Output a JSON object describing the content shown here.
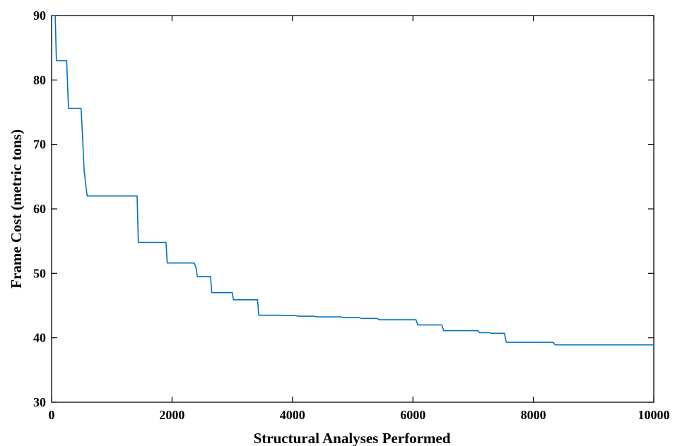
{
  "chart_data": {
    "type": "line",
    "title": "",
    "xlabel": "Structural Analyses Performed",
    "ylabel": "Frame Cost  (metric tons)",
    "xlim": [
      0,
      10000
    ],
    "ylim": [
      30,
      90
    ],
    "xticks": [
      0,
      2000,
      4000,
      6000,
      8000,
      10000
    ],
    "yticks": [
      30,
      40,
      50,
      60,
      70,
      80,
      90
    ],
    "grid": false,
    "legend": "none",
    "line_color": "#0072BD",
    "series": [
      {
        "x": [
          0,
          60,
          80,
          250,
          280,
          490,
          510,
          540,
          570,
          590,
          620,
          1420,
          1440,
          1900,
          1920,
          2370,
          2400,
          2420,
          2440,
          2640,
          2660,
          3000,
          3020,
          3420,
          3440,
          3800,
          3850,
          4050,
          4100,
          4350,
          4400,
          4800,
          4850,
          5100,
          5150,
          5400,
          5450,
          6050,
          6080,
          6480,
          6510,
          7080,
          7110,
          7280,
          7300,
          7520,
          7550,
          8330,
          8360,
          10000
        ],
        "y": [
          90,
          90,
          83,
          83,
          75.6,
          75.6,
          72,
          66,
          63.5,
          62,
          62,
          62,
          54.8,
          54.8,
          51.6,
          51.6,
          50.8,
          49.5,
          49.5,
          49.5,
          47,
          47,
          45.9,
          45.9,
          43.5,
          43.5,
          43.45,
          43.45,
          43.35,
          43.35,
          43.25,
          43.25,
          43.15,
          43.15,
          43.0,
          43.0,
          42.8,
          42.8,
          42.0,
          42.0,
          41.1,
          41.1,
          40.8,
          40.8,
          40.7,
          40.7,
          39.3,
          39.3,
          38.9,
          38.9
        ]
      }
    ]
  }
}
